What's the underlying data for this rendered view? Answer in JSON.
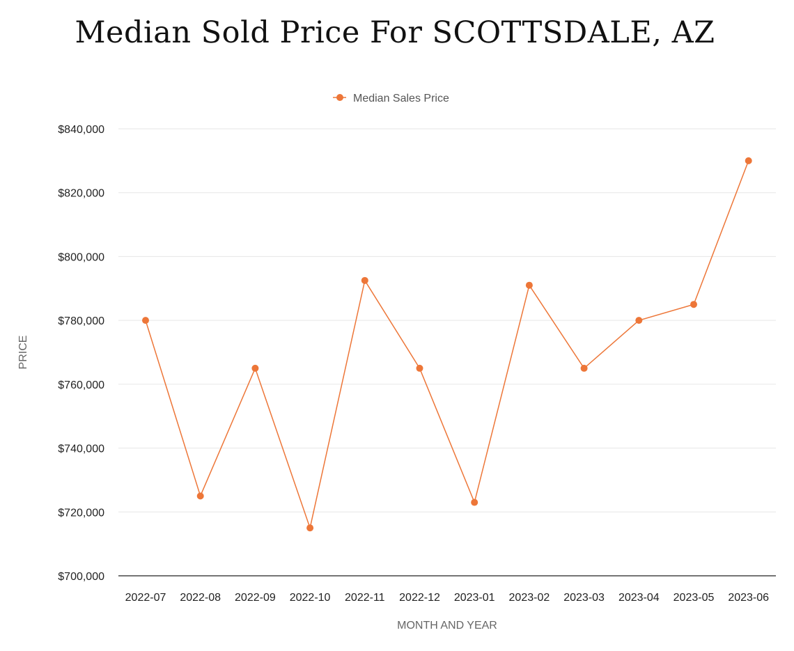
{
  "chart_data": {
    "type": "line",
    "title": "Median Sold Price For SCOTTSDALE, AZ",
    "xlabel": "MONTH AND YEAR",
    "ylabel": "PRICE",
    "legend_position": "top-center",
    "grid": true,
    "categories": [
      "2022-07",
      "2022-08",
      "2022-09",
      "2022-10",
      "2022-11",
      "2022-12",
      "2023-01",
      "2023-02",
      "2023-03",
      "2023-04",
      "2023-05",
      "2023-06"
    ],
    "series": [
      {
        "name": "Median Sales Price",
        "color": "#ED7638",
        "values": [
          780000,
          725000,
          765000,
          715000,
          792500,
          765000,
          723000,
          791000,
          765000,
          780000,
          785000,
          830000
        ]
      }
    ],
    "ylim": [
      700000,
      840000
    ],
    "yticks": [
      700000,
      720000,
      740000,
      760000,
      780000,
      800000,
      820000,
      840000
    ],
    "ytick_labels": [
      "$700,000",
      "$720,000",
      "$740,000",
      "$760,000",
      "$780,000",
      "$800,000",
      "$820,000",
      "$840,000"
    ]
  }
}
